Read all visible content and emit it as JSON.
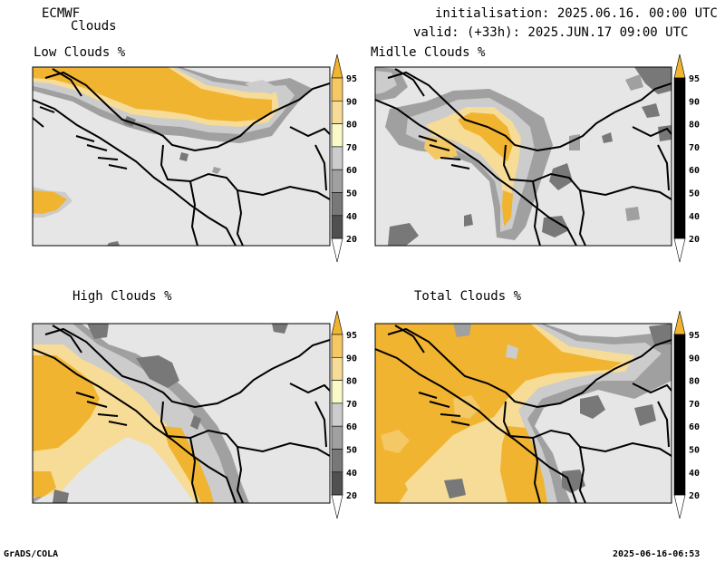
{
  "header": {
    "model": "ECMWF",
    "product": "Clouds",
    "init": "initialisation: 2025.06.16. 00:00 UTC",
    "valid": "valid: (+33h): 2025.JUN.17 09:00 UTC"
  },
  "panels": [
    {
      "title": "Low Clouds %"
    },
    {
      "title": "Midlle Clouds %"
    },
    {
      "title": "High Clouds %"
    },
    {
      "title": "Total Clouds %"
    }
  ],
  "colorbar": {
    "ticks": [
      "95",
      "90",
      "80",
      "70",
      "60",
      "50",
      "40",
      "20"
    ],
    "colors": {
      "c95": "#f0b431",
      "c90": "#f4c864",
      "c80": "#f6dc96",
      "c70": "#fafac8",
      "c60": "#cccccc",
      "c50": "#a0a0a0",
      "c40": "#787878",
      "c20": "#505050",
      "below": "#e6e6e6"
    }
  },
  "footer": {
    "left": "GrADS/COLA",
    "right": "2025-06-16-06:53"
  }
}
